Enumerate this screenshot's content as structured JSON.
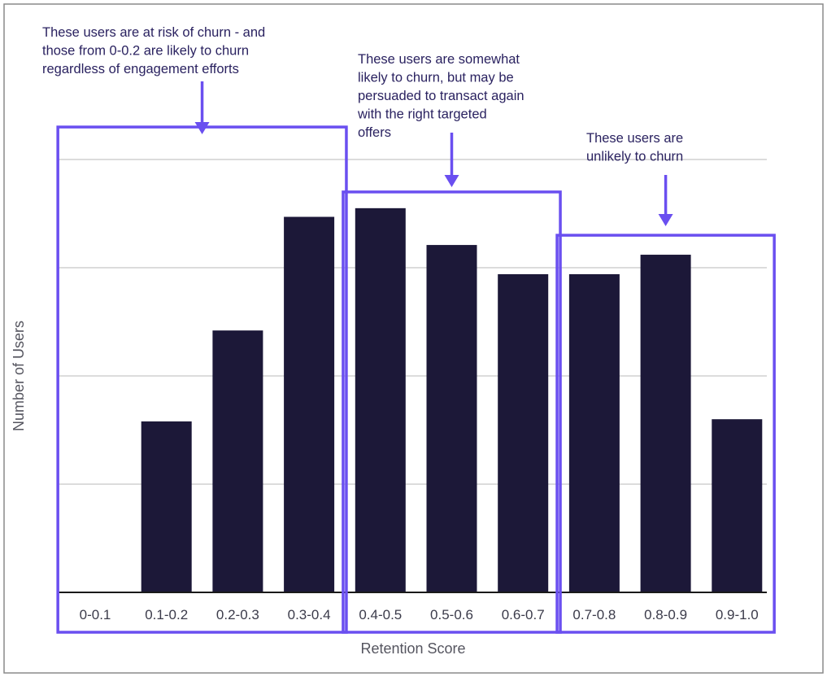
{
  "chart_data": {
    "type": "bar",
    "categories": [
      "0-0.1",
      "0.1-0.2",
      "0.2-0.3",
      "0.3-0.4",
      "0.4-0.5",
      "0.5-0.6",
      "0.6-0.7",
      "0.7-0.8",
      "0.8-0.9",
      "0.9-1.0"
    ],
    "values": [
      0,
      1.58,
      2.42,
      3.47,
      3.55,
      3.21,
      2.94,
      2.94,
      3.12,
      1.6
    ],
    "xlabel": "Retention Score",
    "ylabel": "Number of Users",
    "ylim": [
      0,
      5
    ],
    "grid": true,
    "colors": {
      "bar": "#1c1838",
      "annotation": "#6a4ff0",
      "grid": "#c8c8c8",
      "frame": "#8a8a8a"
    },
    "annotations": [
      {
        "lines": [
          "These users are at risk of churn - and",
          "those from 0-0.2 are likely to churn",
          "regardless of engagement efforts"
        ],
        "categories": [
          "0-0.1",
          "0.3-0.4"
        ],
        "box_top_value": 4.3
      },
      {
        "lines": [
          "These users are somewhat",
          "likely to churn, but may be",
          "persuaded to transact again",
          "with the right targeted",
          "offers"
        ],
        "categories": [
          "0.4-0.5",
          "0.6-0.7"
        ],
        "box_top_value": 3.7
      },
      {
        "lines": [
          "These users are",
          "unlikely to churn"
        ],
        "categories": [
          "0.7-0.8",
          "0.9-1.0"
        ],
        "box_top_value": 3.3
      }
    ]
  }
}
